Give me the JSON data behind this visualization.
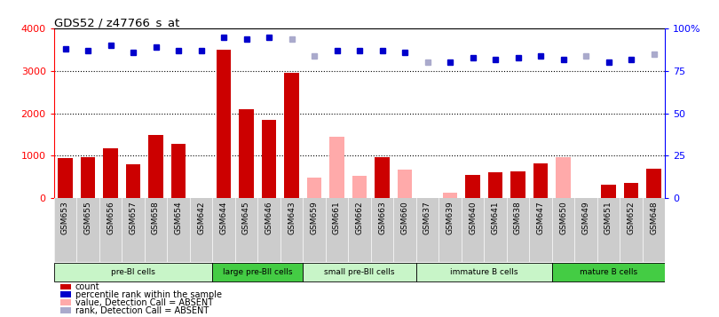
{
  "title": "GDS52 / z47766_s_at",
  "samples": [
    "GSM653",
    "GSM655",
    "GSM656",
    "GSM657",
    "GSM658",
    "GSM654",
    "GSM642",
    "GSM644",
    "GSM645",
    "GSM646",
    "GSM643",
    "GSM659",
    "GSM661",
    "GSM662",
    "GSM663",
    "GSM660",
    "GSM637",
    "GSM639",
    "GSM640",
    "GSM641",
    "GSM638",
    "GSM647",
    "GSM650",
    "GSM649",
    "GSM651",
    "GSM652",
    "GSM648"
  ],
  "counts": [
    950,
    970,
    1180,
    800,
    1500,
    1270,
    0,
    3500,
    2100,
    1850,
    2960,
    0,
    0,
    0,
    970,
    0,
    0,
    0,
    550,
    600,
    630,
    820,
    0,
    0,
    320,
    350,
    700
  ],
  "counts_absent": [
    0,
    0,
    0,
    0,
    0,
    0,
    0,
    0,
    0,
    0,
    0,
    490,
    1440,
    530,
    0,
    670,
    0,
    130,
    0,
    0,
    0,
    0,
    960,
    0,
    0,
    0,
    0
  ],
  "percentile_rank": [
    88,
    87,
    90,
    86,
    89,
    87,
    87,
    95,
    94,
    95,
    94,
    84,
    87,
    87,
    87,
    86,
    80,
    80,
    83,
    82,
    83,
    84,
    82,
    84,
    80,
    82,
    85
  ],
  "is_absent_value": [
    false,
    false,
    false,
    false,
    false,
    false,
    false,
    false,
    false,
    false,
    false,
    true,
    true,
    true,
    false,
    true,
    false,
    true,
    false,
    false,
    false,
    false,
    true,
    false,
    false,
    false,
    false
  ],
  "is_absent_rank": [
    false,
    false,
    false,
    false,
    false,
    false,
    false,
    false,
    false,
    false,
    true,
    true,
    false,
    false,
    false,
    false,
    true,
    false,
    false,
    false,
    false,
    false,
    false,
    true,
    false,
    false,
    true
  ],
  "cell_groups": [
    {
      "label": "pre-BI cells",
      "start": 0,
      "end": 7,
      "color": "#c8f5c8"
    },
    {
      "label": "large pre-BII cells",
      "start": 7,
      "end": 11,
      "color": "#44cc44"
    },
    {
      "label": "small pre-BII cells",
      "start": 11,
      "end": 16,
      "color": "#c8f5c8"
    },
    {
      "label": "immature B cells",
      "start": 16,
      "end": 22,
      "color": "#c8f5c8"
    },
    {
      "label": "mature B cells",
      "start": 22,
      "end": 27,
      "color": "#44cc44"
    }
  ],
  "ylim_left": [
    0,
    4000
  ],
  "ylim_right": [
    0,
    100
  ],
  "yticks_left": [
    0,
    1000,
    2000,
    3000,
    4000
  ],
  "yticks_right": [
    0,
    25,
    50,
    75,
    100
  ],
  "yticklabels_right": [
    "0",
    "25",
    "50",
    "75",
    "100%"
  ],
  "bar_color_present": "#cc0000",
  "bar_color_absent": "#ffaaaa",
  "dot_color_present": "#0000cc",
  "dot_color_absent": "#aaaacc",
  "tick_area_bg": "#cccccc"
}
